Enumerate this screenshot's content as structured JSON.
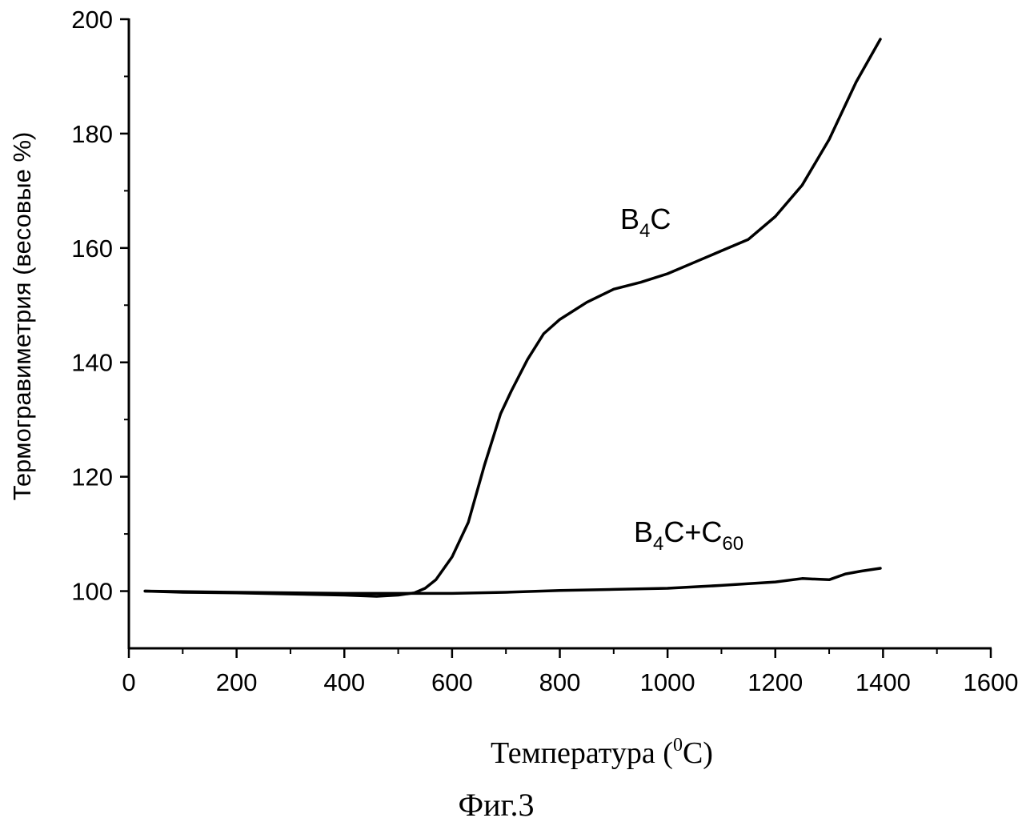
{
  "chart_data": {
    "type": "line",
    "title": "",
    "xlabel": {
      "prefix": "Температура (",
      "sup": "0",
      "suffix": "C)"
    },
    "ylabel": "Термогравиметрия (весовые %)",
    "xlim": [
      0,
      1600
    ],
    "ylim": [
      90,
      200
    ],
    "x_ticks": [
      0,
      200,
      400,
      600,
      800,
      1000,
      1200,
      1400,
      1600
    ],
    "y_ticks": [
      100,
      120,
      140,
      160,
      180,
      200
    ],
    "grid": false,
    "series": [
      {
        "name": {
          "base": "B",
          "sub1": "4",
          "mid": "C",
          "sub2": ""
        },
        "color": "#000000",
        "x": [
          30,
          100,
          200,
          300,
          400,
          460,
          500,
          530,
          550,
          570,
          600,
          630,
          660,
          690,
          710,
          740,
          770,
          800,
          850,
          900,
          950,
          1000,
          1050,
          1100,
          1150,
          1200,
          1250,
          1300,
          1350,
          1395
        ],
        "y": [
          100,
          99.8,
          99.7,
          99.5,
          99.3,
          99.1,
          99.3,
          99.7,
          100.5,
          102,
          106,
          112,
          122,
          131,
          135,
          140.5,
          145,
          147.5,
          150.5,
          152.8,
          154,
          155.5,
          157.5,
          159.5,
          161.5,
          165.5,
          171,
          179,
          189,
          196.5
        ]
      },
      {
        "name": {
          "base": "B",
          "sub1": "4",
          "mid": "C+C",
          "sub2": "60"
        },
        "color": "#000000",
        "x": [
          30,
          200,
          400,
          500,
          600,
          700,
          800,
          900,
          1000,
          1100,
          1200,
          1250,
          1300,
          1330,
          1360,
          1395
        ],
        "y": [
          100,
          99.8,
          99.6,
          99.6,
          99.6,
          99.8,
          100.1,
          100.3,
          100.5,
          101,
          101.6,
          102.2,
          102,
          103,
          103.5,
          104
        ]
      }
    ]
  },
  "caption": "Фиг.3"
}
